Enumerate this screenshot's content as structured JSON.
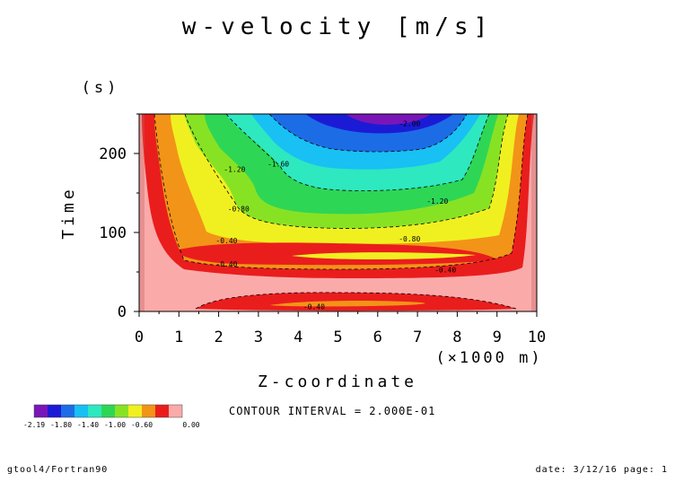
{
  "chart_data": {
    "type": "contour",
    "title": "w-velocity [m/s]",
    "xlabel": "Z-coordinate",
    "x_unit_label": "(×1000 m)",
    "ylabel": "Time",
    "y_unit_label": "(s)",
    "xlim": [
      0,
      10
    ],
    "ylim": [
      0,
      250
    ],
    "x_ticks": [
      "0",
      "1",
      "2",
      "3",
      "4",
      "5",
      "6",
      "7",
      "8",
      "9",
      "10"
    ],
    "y_ticks": [
      "0",
      "100",
      "200"
    ],
    "contour_interval_text": "CONTOUR INTERVAL = 2.000E-01",
    "contour_levels_shown": [
      -2.0,
      -1.6,
      -1.2,
      -0.8,
      -0.4
    ],
    "contour_labels": [
      {
        "text": "-2.00",
        "x": 6.8,
        "y": 238
      },
      {
        "text": "-1.60",
        "x": 3.5,
        "y": 187
      },
      {
        "text": "-1.20",
        "x": 2.4,
        "y": 180
      },
      {
        "text": "-1.20",
        "x": 7.5,
        "y": 140
      },
      {
        "text": "-0.80",
        "x": 2.5,
        "y": 130
      },
      {
        "text": "-0.80",
        "x": 6.8,
        "y": 92
      },
      {
        "text": "-0.40",
        "x": 2.2,
        "y": 90
      },
      {
        "text": "-0.40",
        "x": 2.2,
        "y": 60
      },
      {
        "text": "-0.40",
        "x": 7.7,
        "y": 53
      },
      {
        "text": "-0.40",
        "x": 4.4,
        "y": 6
      }
    ],
    "colorbar": {
      "colors": [
        "#7a16b8",
        "#1b1bd6",
        "#1c6ce6",
        "#18c0f4",
        "#2ee8c0",
        "#2ed655",
        "#88e224",
        "#f0f020",
        "#f29418",
        "#ea1d1d",
        "#fbaaaa"
      ],
      "tick_labels": [
        "-2.19",
        "-1.80",
        "-1.40",
        "-1.00",
        "-0.60",
        "0.00"
      ]
    }
  },
  "footer": {
    "left": "gtool4/Fortran90",
    "right": "date: 3/12/16 page: 1"
  }
}
